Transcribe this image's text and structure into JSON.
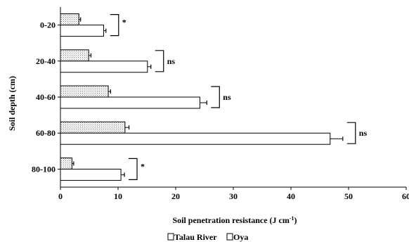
{
  "chart_data": {
    "type": "bar",
    "orientation": "horizontal",
    "title": "",
    "xlabel": "Soil penetration resistance (J cm",
    "xlabel_superscript": "-1",
    "xlabel_suffix": ")",
    "ylabel": "Soil depth (cm)",
    "xlim": [
      0,
      60
    ],
    "x_ticks": [
      "0",
      "10",
      "20",
      "30",
      "40",
      "50",
      "60"
    ],
    "categories": [
      "0-20",
      "20-40",
      "40-60",
      "60-80",
      "80-100"
    ],
    "series": [
      {
        "name": "Talau River",
        "values": [
          3.2,
          4.9,
          8.3,
          11.2,
          2.0
        ],
        "errors": [
          0.3,
          0.4,
          0.4,
          0.7,
          0.3
        ],
        "fill": "dotted"
      },
      {
        "name": "Oya",
        "values": [
          7.5,
          15.1,
          24.2,
          46.8,
          10.5
        ],
        "errors": [
          0.4,
          0.6,
          1.2,
          2.2,
          0.6
        ],
        "fill": "white"
      }
    ],
    "significance": [
      "*",
      "ns",
      "ns",
      "ns",
      "*"
    ],
    "grid": false,
    "legend_position": "bottom"
  }
}
